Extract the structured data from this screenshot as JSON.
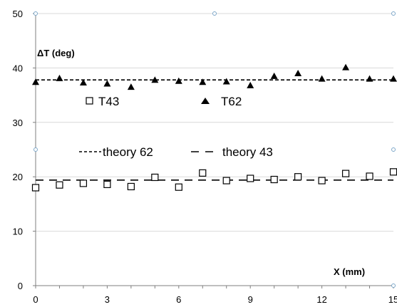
{
  "chart_data": {
    "type": "scatter",
    "ylabel": "ΔT (deg)",
    "xlabel": "X (mm)",
    "xlim": [
      0,
      15
    ],
    "ylim": [
      0,
      50
    ],
    "x_ticks": [
      "0",
      "3",
      "6",
      "9",
      "12",
      "15"
    ],
    "y_ticks": [
      "0",
      "10",
      "20",
      "30",
      "40",
      "50"
    ],
    "grid": "horizontal",
    "series": [
      {
        "name": "T62",
        "marker": "triangle",
        "color": "#000000",
        "x": [
          0,
          1,
          2,
          3,
          4,
          5,
          6,
          7,
          8,
          9,
          10,
          11,
          12,
          13,
          14,
          15
        ],
        "y": [
          37.4,
          38.1,
          37.3,
          37.1,
          36.5,
          37.8,
          37.6,
          37.4,
          37.5,
          36.8,
          38.5,
          39.0,
          38.0,
          40.1,
          38.0,
          38.0
        ]
      },
      {
        "name": "T43",
        "marker": "open-square",
        "color": "#000000",
        "x": [
          0,
          1,
          2,
          3,
          4,
          5,
          6,
          7,
          8,
          9,
          10,
          11,
          12,
          13,
          14,
          15
        ],
        "y": [
          18.0,
          18.5,
          18.8,
          18.6,
          18.2,
          19.9,
          18.1,
          20.7,
          19.3,
          19.7,
          19.5,
          20.0,
          19.3,
          20.6,
          20.1,
          20.9
        ]
      },
      {
        "name": "theory 62",
        "type": "line",
        "dash": "short",
        "color": "#000000",
        "y": 37.8
      },
      {
        "name": "theory 43",
        "type": "line",
        "dash": "long",
        "color": "#000000",
        "y": 19.4
      }
    ]
  }
}
